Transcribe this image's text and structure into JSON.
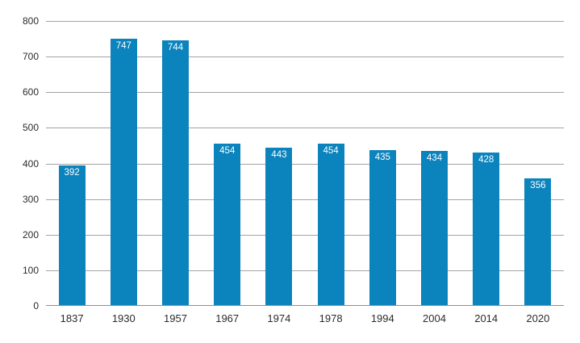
{
  "chart_data": {
    "type": "bar",
    "categories": [
      "1837",
      "1930",
      "1957",
      "1967",
      "1974",
      "1978",
      "1994",
      "2004",
      "2014",
      "2020"
    ],
    "values": [
      392,
      747,
      744,
      454,
      443,
      454,
      435,
      434,
      428,
      356
    ],
    "title": "",
    "xlabel": "",
    "ylabel": "",
    "ylim": [
      0,
      800
    ],
    "yticks": [
      0,
      100,
      200,
      300,
      400,
      500,
      600,
      700,
      800
    ],
    "grid": true,
    "legend": "none",
    "bar_color": "#0b83bd",
    "value_label_color": "#ffffff",
    "gridline_color": "#a3a3a3",
    "axis_line_color": "#8f8f8f",
    "text_color": "#2b2b2b",
    "background": "#ffffff"
  }
}
